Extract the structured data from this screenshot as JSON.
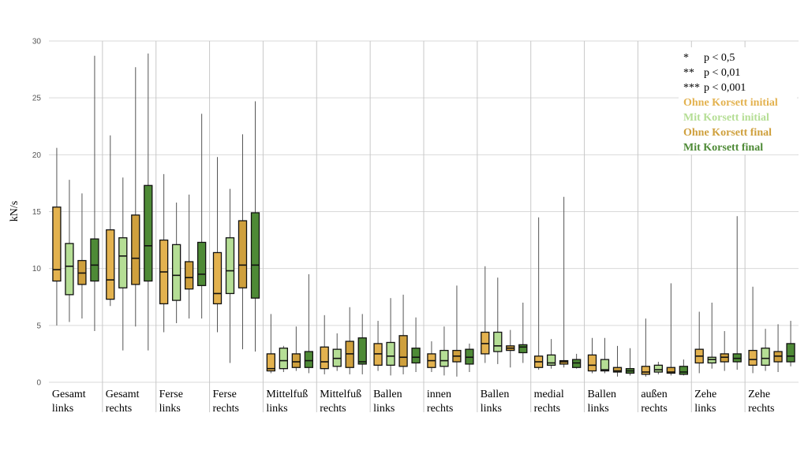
{
  "chart_data": {
    "type": "box",
    "ylabel": "kN/s",
    "ylim": [
      0,
      30
    ],
    "yticks": [
      0,
      5,
      10,
      15,
      20,
      25,
      30
    ],
    "grid": "vertical category separators and horizontal gridlines",
    "legend_position": "top-right",
    "significance_legend": [
      {
        "sym": "*",
        "text": "p < 0,5"
      },
      {
        "sym": "**",
        "text": "p < 0,01"
      },
      {
        "sym": "***",
        "text": "p < 0,001"
      }
    ],
    "series": [
      {
        "name": "Ohne Korsett initial",
        "color": "#E3B24F"
      },
      {
        "name": "Mit Korsett initial",
        "color": "#B5DE95"
      },
      {
        "name": "Ohne Korsett final",
        "color": "#CFA03D"
      },
      {
        "name": "Mit Korsett final",
        "color": "#4E8A36"
      }
    ],
    "categories": [
      {
        "line1": "Gesamt",
        "line2": "links",
        "boxes": [
          [
            5.0,
            8.9,
            9.9,
            15.4,
            20.6
          ],
          [
            5.3,
            7.7,
            10.2,
            12.2,
            17.8
          ],
          [
            5.6,
            8.6,
            9.6,
            10.7,
            16.6
          ],
          [
            4.5,
            8.9,
            10.3,
            12.6,
            28.7
          ]
        ]
      },
      {
        "line1": "Gesamt",
        "line2": "rechts",
        "boxes": [
          [
            6.7,
            7.3,
            9.0,
            13.4,
            21.7
          ],
          [
            2.8,
            8.3,
            11.1,
            12.7,
            18.0
          ],
          [
            4.9,
            8.6,
            10.9,
            14.7,
            27.7
          ],
          [
            2.8,
            8.9,
            12.0,
            17.3,
            28.9
          ]
        ]
      },
      {
        "line1": "Ferse",
        "line2": "links",
        "boxes": [
          [
            4.4,
            6.9,
            9.7,
            12.5,
            18.3
          ],
          [
            5.2,
            7.2,
            9.4,
            12.1,
            15.8
          ],
          [
            5.6,
            8.2,
            9.2,
            10.6,
            16.5
          ],
          [
            5.6,
            8.5,
            9.5,
            12.3,
            23.6
          ]
        ]
      },
      {
        "line1": "Ferse",
        "line2": "rechts",
        "boxes": [
          [
            4.4,
            6.9,
            7.8,
            11.4,
            19.8
          ],
          [
            1.7,
            7.8,
            9.8,
            12.7,
            17.0
          ],
          [
            2.9,
            8.3,
            10.3,
            14.2,
            21.8
          ],
          [
            2.7,
            7.4,
            10.3,
            14.9,
            24.7
          ]
        ]
      },
      {
        "line1": "Mittelfuß",
        "line2": "links",
        "boxes": [
          [
            0.8,
            1.0,
            1.2,
            2.5,
            6.0
          ],
          [
            0.9,
            1.2,
            1.9,
            3.0,
            3.2
          ],
          [
            1.0,
            1.3,
            1.8,
            2.5,
            4.9
          ],
          [
            0.8,
            1.3,
            1.9,
            2.7,
            9.5
          ]
        ]
      },
      {
        "line1": "Mittelfuß",
        "line2": "rechts",
        "boxes": [
          [
            0.7,
            1.2,
            1.8,
            3.1,
            5.9
          ],
          [
            1.0,
            1.4,
            2.1,
            2.9,
            4.3
          ],
          [
            0.7,
            1.3,
            2.5,
            3.6,
            6.6
          ],
          [
            0.7,
            1.6,
            1.8,
            3.9,
            6.0
          ]
        ]
      },
      {
        "line1": "Ballen",
        "line2": "links",
        "boxes": [
          [
            1.0,
            1.5,
            2.5,
            3.4,
            5.4
          ],
          [
            0.6,
            1.5,
            2.3,
            3.5,
            7.4
          ],
          [
            0.7,
            1.4,
            2.2,
            4.1,
            7.7
          ],
          [
            0.9,
            1.7,
            2.2,
            3.0,
            5.7
          ]
        ]
      },
      {
        "line1": "innen",
        "line2": "rechts",
        "boxes": [
          [
            0.9,
            1.3,
            1.9,
            2.5,
            3.6
          ],
          [
            0.6,
            1.4,
            1.9,
            2.8,
            4.9
          ],
          [
            0.5,
            1.8,
            2.3,
            2.8,
            8.5
          ],
          [
            0.9,
            1.6,
            2.2,
            2.9,
            3.4
          ]
        ]
      },
      {
        "line1": "Ballen",
        "line2": "links",
        "boxes": [
          [
            1.7,
            2.5,
            3.4,
            4.4,
            10.2
          ],
          [
            1.6,
            2.7,
            3.2,
            4.4,
            9.2
          ],
          [
            1.3,
            2.8,
            3.0,
            3.2,
            4.6
          ],
          [
            1.7,
            2.6,
            3.1,
            3.3,
            7.0
          ]
        ]
      },
      {
        "line1": "medial",
        "line2": "rechts",
        "boxes": [
          [
            1.1,
            1.3,
            1.8,
            2.3,
            14.5
          ],
          [
            1.2,
            1.5,
            1.7,
            2.4,
            3.8
          ],
          [
            1.3,
            1.6,
            1.8,
            1.9,
            16.3
          ],
          [
            1.2,
            1.3,
            1.7,
            2.0,
            2.5
          ]
        ]
      },
      {
        "line1": "Ballen",
        "line2": "links",
        "boxes": [
          [
            0.8,
            1.0,
            1.5,
            2.4,
            3.9
          ],
          [
            0.8,
            1.0,
            1.1,
            2.0,
            3.9
          ],
          [
            0.5,
            0.9,
            1.0,
            1.3,
            3.2
          ],
          [
            0.6,
            0.8,
            1.0,
            1.2,
            3.0
          ]
        ]
      },
      {
        "line1": "außen",
        "line2": "rechts",
        "boxes": [
          [
            0.5,
            0.7,
            0.9,
            1.4,
            5.6
          ],
          [
            0.7,
            0.9,
            1.1,
            1.5,
            1.8
          ],
          [
            0.6,
            0.8,
            0.9,
            1.3,
            8.7
          ],
          [
            0.6,
            0.7,
            0.9,
            1.4,
            2.0
          ]
        ]
      },
      {
        "line1": "Zehe",
        "line2": "links",
        "boxes": [
          [
            0.8,
            1.7,
            2.3,
            2.9,
            6.2
          ],
          [
            1.2,
            1.7,
            2.0,
            2.2,
            7.0
          ],
          [
            1.0,
            1.8,
            2.2,
            2.5,
            4.5
          ],
          [
            1.1,
            1.8,
            2.1,
            2.5,
            14.6
          ]
        ]
      },
      {
        "line1": "Zehe",
        "line2": "rechts",
        "boxes": [
          [
            0.8,
            1.5,
            2.0,
            2.8,
            8.4
          ],
          [
            1.0,
            1.5,
            2.1,
            3.0,
            4.7
          ],
          [
            0.9,
            1.8,
            2.3,
            2.7,
            5.1
          ],
          [
            1.4,
            1.8,
            2.3,
            3.4,
            5.4
          ]
        ]
      }
    ]
  }
}
